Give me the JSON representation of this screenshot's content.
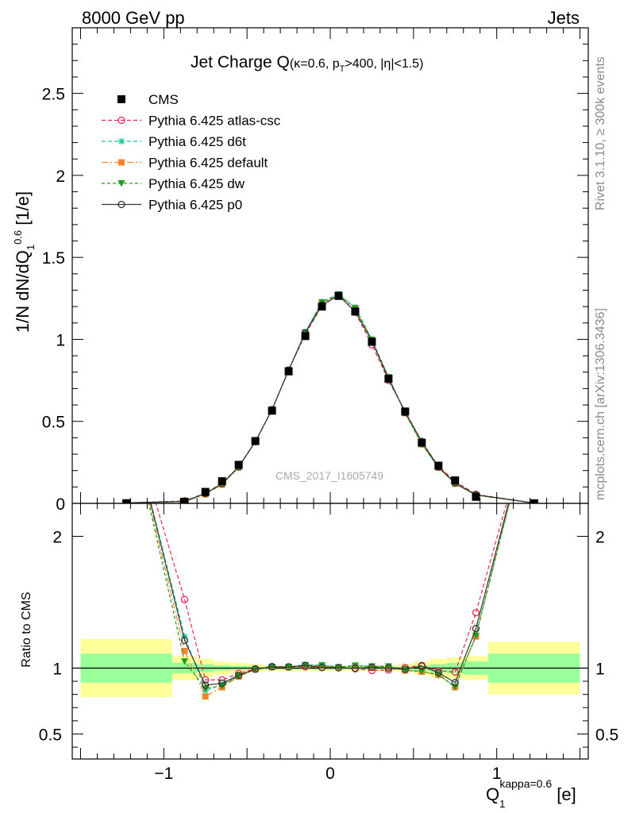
{
  "header": {
    "left": "8000 GeV pp",
    "right": "Jets",
    "side_top": "Rivet 3.1.10, ≥ 300k events",
    "side_bottom": "mcplots.cern.ch [arXiv:1306.3436]",
    "watermark": "CMS_2017_I1605749"
  },
  "colors": {
    "cms": "#000000",
    "atlas_csc": "#e8294f",
    "d6t": "#1fc8a0",
    "default": "#f5842c",
    "dw": "#1f9e1f",
    "p0": "#333333",
    "band_inner": "#99ff99",
    "band_outer": "#ffff99"
  },
  "chart_data": {
    "type": "line",
    "title_main": "Jet Charge Q",
    "title_sub": "(κ=0.6, p",
    "title_sub_T": "T",
    "title_sub_rest": ">400, |η|<1.5)",
    "ylabel": "1/N dN/dQ",
    "ylabel_sub": "1",
    "ylabel_sup": "0.6",
    "ylabel_unit": " [1/e]",
    "xlabel": "Q",
    "xlabel_sub": "1",
    "xlabel_sup": "kappa=0.6",
    "xlabel_unit": " [e]",
    "ratio_ylabel": "Ratio to CMS",
    "xlim": [
      -1.55,
      1.55
    ],
    "ylim": [
      0,
      2.9
    ],
    "ratio_ylim": [
      0.31,
      2.25
    ],
    "x_ticks": [
      "−1",
      "0",
      "1"
    ],
    "y_ticks": [
      "0",
      "0.5",
      "1",
      "1.5",
      "2",
      "2.5"
    ],
    "ratio_ticks": [
      "0.5",
      "1",
      "2"
    ],
    "x": [
      -1.225,
      -0.875,
      -0.75,
      -0.65,
      -0.55,
      -0.45,
      -0.35,
      -0.25,
      -0.15,
      -0.05,
      0.05,
      0.15,
      0.25,
      0.35,
      0.45,
      0.55,
      0.65,
      0.75,
      0.875,
      1.225
    ],
    "series": [
      {
        "name": "CMS",
        "key": "cms",
        "values": [
          0.001,
          0.01,
          0.07,
          0.135,
          0.235,
          0.38,
          0.565,
          0.805,
          1.02,
          1.2,
          1.265,
          1.17,
          0.985,
          0.76,
          0.56,
          0.37,
          0.23,
          0.14,
          0.04,
          0.0005
        ]
      },
      {
        "name": "Pythia 6.425 atlas-csc",
        "key": "atlas_csc",
        "values": [
          0.003,
          0.015,
          0.063,
          0.122,
          0.225,
          0.378,
          0.572,
          0.813,
          1.03,
          1.205,
          1.27,
          1.165,
          0.967,
          0.75,
          0.562,
          0.377,
          0.225,
          0.135,
          0.055,
          0.002
        ],
        "ratio": [
          3.0,
          1.52,
          0.91,
          0.91,
          0.96,
          0.995,
          1.012,
          1.01,
          1.01,
          1.004,
          1.005,
          0.995,
          0.982,
          0.986,
          1.004,
          1.02,
          0.979,
          0.97,
          1.42,
          3.0
        ]
      },
      {
        "name": "Pythia 6.425 d6t",
        "key": "d6t",
        "values": [
          0.003,
          0.012,
          0.061,
          0.118,
          0.221,
          0.377,
          0.571,
          0.813,
          1.044,
          1.23,
          1.275,
          1.195,
          1.0,
          0.771,
          0.552,
          0.36,
          0.219,
          0.12,
          0.05,
          0.002
        ],
        "ratio": [
          3.0,
          1.24,
          0.83,
          0.875,
          0.94,
          0.992,
          1.01,
          1.01,
          1.025,
          1.025,
          1.008,
          1.021,
          1.015,
          1.015,
          0.985,
          0.975,
          0.952,
          0.86,
          1.25,
          3.0
        ]
      },
      {
        "name": "Pythia 6.425 default",
        "key": "default",
        "values": [
          0.003,
          0.011,
          0.055,
          0.115,
          0.22,
          0.375,
          0.57,
          0.812,
          1.04,
          1.22,
          1.27,
          1.19,
          0.995,
          0.767,
          0.55,
          0.36,
          0.218,
          0.12,
          0.05,
          0.002
        ],
        "ratio": [
          3.0,
          1.13,
          0.785,
          0.855,
          0.935,
          0.99,
          1.008,
          1.008,
          1.02,
          1.017,
          1.005,
          1.017,
          1.01,
          1.01,
          0.982,
          0.973,
          0.948,
          0.855,
          1.24,
          3.0
        ]
      },
      {
        "name": "Pythia 6.425 dw",
        "key": "dw",
        "values": [
          0.003,
          0.011,
          0.059,
          0.118,
          0.221,
          0.376,
          0.571,
          0.812,
          1.042,
          1.225,
          1.273,
          1.19,
          0.997,
          0.769,
          0.551,
          0.36,
          0.219,
          0.12,
          0.05,
          0.002
        ],
        "ratio": [
          3.0,
          1.05,
          0.845,
          0.865,
          0.94,
          0.99,
          1.008,
          1.009,
          1.022,
          1.02,
          1.006,
          1.018,
          1.012,
          1.012,
          0.983,
          0.974,
          0.95,
          0.857,
          1.245,
          3.0
        ]
      },
      {
        "name": "Pythia 6.425 p0",
        "key": "p0",
        "values": [
          0.003,
          0.012,
          0.061,
          0.12,
          0.222,
          0.377,
          0.571,
          0.812,
          1.04,
          1.21,
          1.268,
          1.17,
          0.99,
          0.76,
          0.555,
          0.376,
          0.222,
          0.125,
          0.052,
          0.002
        ],
        "ratio": [
          3.0,
          1.21,
          0.87,
          0.885,
          0.945,
          0.992,
          1.01,
          1.008,
          1.02,
          1.005,
          1.002,
          1.0,
          1.005,
          1.0,
          0.991,
          1.015,
          0.965,
          0.89,
          1.3,
          3.0
        ]
      }
    ],
    "bands": {
      "x_edges": [
        -1.5,
        -0.95,
        -0.8,
        -0.7,
        -0.6,
        -0.5,
        -0.4,
        -0.3,
        -0.2,
        -0.1,
        0.0,
        0.1,
        0.2,
        0.3,
        0.4,
        0.5,
        0.6,
        0.7,
        0.8,
        0.95,
        1.5
      ],
      "inner_half": [
        0.11,
        0.04,
        0.03,
        0.02,
        0.015,
        0.01,
        0.01,
        0.01,
        0.01,
        0.01,
        0.01,
        0.01,
        0.01,
        0.01,
        0.01,
        0.02,
        0.03,
        0.04,
        0.05,
        0.11
      ],
      "outer_half": [
        0.22,
        0.09,
        0.07,
        0.05,
        0.04,
        0.03,
        0.02,
        0.02,
        0.02,
        0.02,
        0.02,
        0.02,
        0.02,
        0.02,
        0.03,
        0.05,
        0.07,
        0.08,
        0.09,
        0.2
      ]
    },
    "legend_position": "top-left",
    "grid": false
  }
}
